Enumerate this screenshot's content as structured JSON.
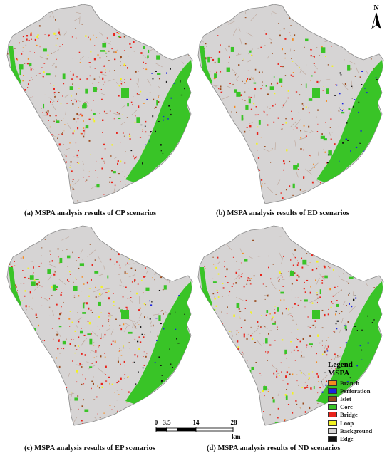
{
  "panels": [
    {
      "id": "a",
      "caption": "(a) MSPA analysis results of CP scenarios"
    },
    {
      "id": "b",
      "caption": "(b) MSPA analysis results of ED scenarios"
    },
    {
      "id": "c",
      "caption": "(c) MSPA analysis results of EP scenarios"
    },
    {
      "id": "d",
      "caption": "(d) MSPA analysis results of  ND scenarios"
    }
  ],
  "north_arrow": {
    "label": "N"
  },
  "scale_bar": {
    "ticks": [
      "0",
      "3.5",
      "14",
      "28"
    ],
    "unit": "km"
  },
  "legend": {
    "title": "Legend",
    "subtitle": "MSPA",
    "items": [
      {
        "label": "Branch",
        "color": "#f58a1f"
      },
      {
        "label": "Perforation",
        "color": "#1a22e0"
      },
      {
        "label": "Islet",
        "color": "#9a4a1c"
      },
      {
        "label": "Core",
        "color": "#39c427"
      },
      {
        "label": "Bridge",
        "color": "#e8231b"
      },
      {
        "label": "Loop",
        "color": "#f2f222"
      },
      {
        "label": "Background",
        "color": "#d6d4d4"
      },
      {
        "label": "Edge",
        "color": "#111111"
      }
    ]
  }
}
